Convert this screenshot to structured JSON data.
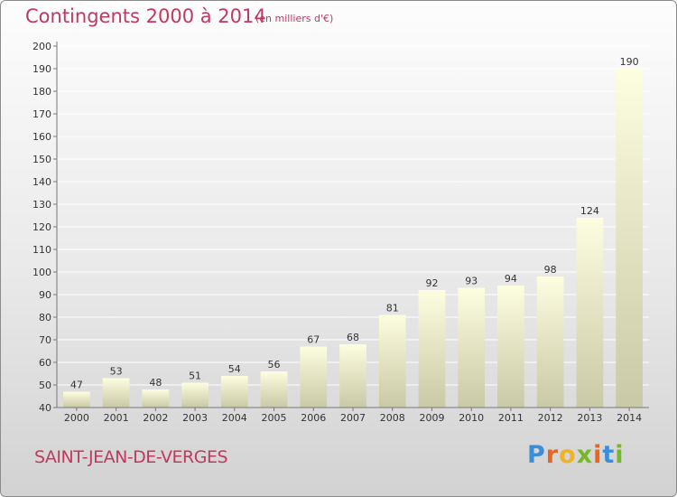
{
  "header": {
    "title": "Contingents 2000 à 2014",
    "unit": "(en milliers d'€)"
  },
  "footer": {
    "commune": "SAINT-JEAN-DE-VERGES",
    "logo": {
      "text": "Proxiti",
      "letter_colors": [
        "#3a8fd8",
        "#e9661c",
        "#f0b323",
        "#76b82a",
        "#e9661c",
        "#3a8fd8",
        "#76b82a"
      ]
    }
  },
  "colors": {
    "title": "#c0395f",
    "bar_top": "#fdfde0",
    "bar_bottom": "#c9c9a6",
    "grid": "#ffffff",
    "axis": "#777777"
  },
  "chart_data": {
    "type": "bar",
    "categories": [
      "2000",
      "2001",
      "2002",
      "2003",
      "2004",
      "2005",
      "2006",
      "2007",
      "2008",
      "2009",
      "2010",
      "2011",
      "2012",
      "2013",
      "2014"
    ],
    "values": [
      47,
      53,
      48,
      51,
      54,
      56,
      67,
      68,
      81,
      92,
      93,
      94,
      98,
      124,
      190
    ],
    "title": "Contingents 2000 à 2014",
    "ylim": [
      40,
      200
    ],
    "ytick_step": 10,
    "grid": true,
    "data_labels": true
  }
}
